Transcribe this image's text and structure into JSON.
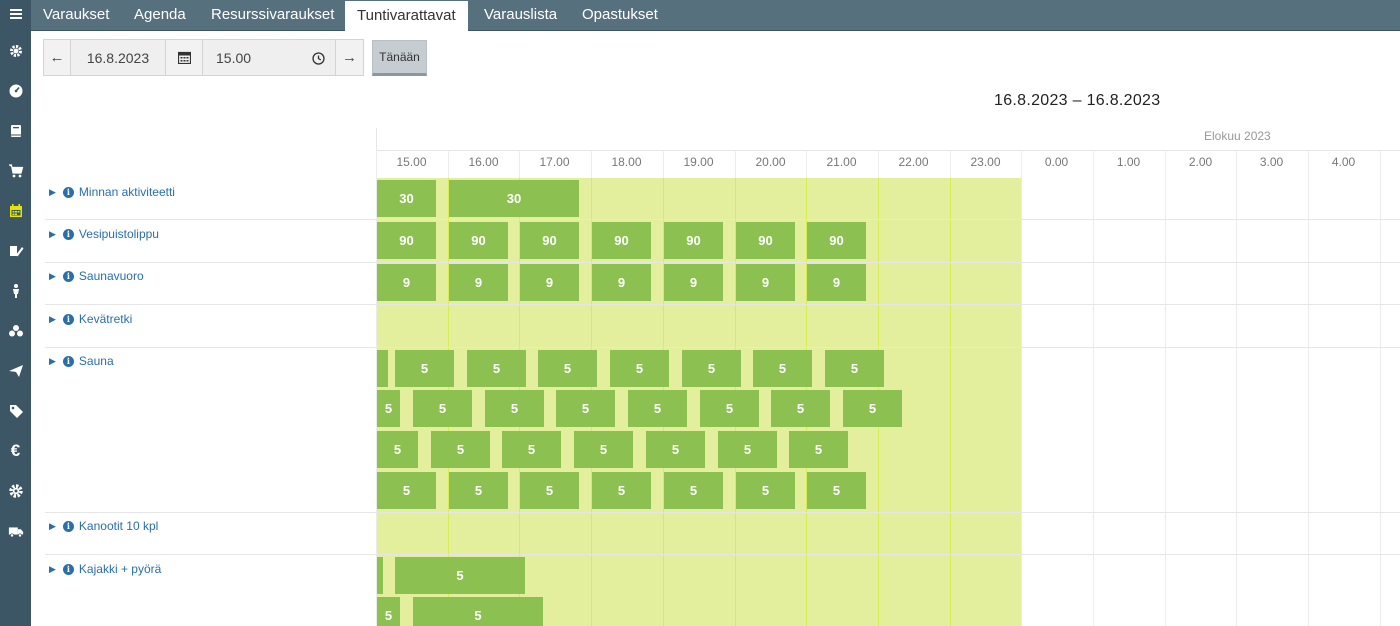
{
  "rail": {
    "icons": [
      "menu-icon",
      "settings-cog-icon",
      "dashboard-gauge-icon",
      "book-icon",
      "cart-icon",
      "calendar-icon",
      "ticket-edit-icon",
      "person-icon",
      "group-icon",
      "send-icon",
      "tag-icon",
      "euro-icon",
      "gear-icon",
      "truck-icon"
    ],
    "active_index": 5
  },
  "nav": {
    "tabs": [
      {
        "label": "Varaukset"
      },
      {
        "label": "Agenda"
      },
      {
        "label": "Resurssivaraukset"
      },
      {
        "label": "Tuntivarattavat"
      },
      {
        "label": "Varauslista"
      },
      {
        "label": "Opastukset"
      }
    ],
    "active": "Tuntivarattavat"
  },
  "controls": {
    "date": "16.8.2023",
    "time": "15.00",
    "today_label": "Tänään"
  },
  "header": {
    "date_range": "16.8.2023 – 16.8.2023",
    "month_label": "Elokuu 2023"
  },
  "timeline": {
    "hours": [
      "15.00",
      "16.00",
      "17.00",
      "18.00",
      "19.00",
      "20.00",
      "21.00",
      "22.00",
      "23.00",
      "0.00",
      "1.00",
      "2.00",
      "3.00",
      "4.00"
    ],
    "bookable_until": "23.00"
  },
  "resources": [
    {
      "name": "Minnan aktiviteetti"
    },
    {
      "name": "Vesipuistolippu"
    },
    {
      "name": "Saunavuoro"
    },
    {
      "name": "Kevätretki"
    },
    {
      "name": "Sauna"
    },
    {
      "name": "Kanootit 10 kpl"
    },
    {
      "name": "Kajakki + pyörä"
    }
  ],
  "availability": [
    {
      "resource": "Minnan aktiviteetti",
      "slots": [
        {
          "start": "15.00",
          "end": "15.50",
          "value": "30"
        },
        {
          "start": "16.00",
          "end": "17.50",
          "value": "30"
        }
      ]
    },
    {
      "resource": "Vesipuistolippu",
      "slots": [
        {
          "start": "15.00",
          "end": "15.50",
          "value": "90"
        },
        {
          "start": "16.00",
          "end": "16.50",
          "value": "90"
        },
        {
          "start": "17.00",
          "end": "17.50",
          "value": "90"
        },
        {
          "start": "18.00",
          "end": "18.50",
          "value": "90"
        },
        {
          "start": "19.00",
          "end": "19.50",
          "value": "90"
        },
        {
          "start": "20.00",
          "end": "20.50",
          "value": "90"
        },
        {
          "start": "21.00",
          "end": "21.50",
          "value": "90"
        }
      ]
    },
    {
      "resource": "Saunavuoro",
      "slots": [
        {
          "start": "15.00",
          "end": "15.50",
          "value": "9"
        },
        {
          "start": "16.00",
          "end": "16.50",
          "value": "9"
        },
        {
          "start": "17.00",
          "end": "17.50",
          "value": "9"
        },
        {
          "start": "18.00",
          "end": "18.50",
          "value": "9"
        },
        {
          "start": "19.00",
          "end": "19.50",
          "value": "9"
        },
        {
          "start": "20.00",
          "end": "20.50",
          "value": "9"
        },
        {
          "start": "21.00",
          "end": "21.50",
          "value": "9"
        }
      ]
    },
    {
      "resource": "Sauna",
      "lane": 1,
      "slots": [
        {
          "start": "15.00",
          "end": "15.10",
          "value": ""
        },
        {
          "start": "15.15",
          "end": "16.05",
          "value": "5"
        },
        {
          "start": "16.15",
          "end": "17.05",
          "value": "5"
        },
        {
          "start": "17.15",
          "end": "18.05",
          "value": "5"
        },
        {
          "start": "18.15",
          "end": "19.05",
          "value": "5"
        },
        {
          "start": "19.15",
          "end": "20.05",
          "value": "5"
        },
        {
          "start": "20.15",
          "end": "21.05",
          "value": "5"
        },
        {
          "start": "21.15",
          "end": "22.05",
          "value": "5"
        }
      ]
    },
    {
      "resource": "Sauna",
      "lane": 2,
      "slots": [
        {
          "start": "15.00",
          "end": "15.20",
          "value": "5"
        },
        {
          "start": "15.30",
          "end": "16.20",
          "value": "5"
        },
        {
          "start": "16.30",
          "end": "17.20",
          "value": "5"
        },
        {
          "start": "17.30",
          "end": "18.20",
          "value": "5"
        },
        {
          "start": "18.30",
          "end": "19.20",
          "value": "5"
        },
        {
          "start": "19.30",
          "end": "20.20",
          "value": "5"
        },
        {
          "start": "20.30",
          "end": "21.20",
          "value": "5"
        },
        {
          "start": "21.30",
          "end": "22.20",
          "value": "5"
        }
      ]
    },
    {
      "resource": "Sauna",
      "lane": 3,
      "slots": [
        {
          "start": "15.00",
          "end": "15.35",
          "value": "5"
        },
        {
          "start": "15.45",
          "end": "16.35",
          "value": "5"
        },
        {
          "start": "16.45",
          "end": "17.35",
          "value": "5"
        },
        {
          "start": "17.45",
          "end": "18.35",
          "value": "5"
        },
        {
          "start": "18.45",
          "end": "19.35",
          "value": "5"
        },
        {
          "start": "19.45",
          "end": "20.35",
          "value": "5"
        },
        {
          "start": "20.45",
          "end": "21.35",
          "value": "5"
        }
      ]
    },
    {
      "resource": "Sauna",
      "lane": 4,
      "slots": [
        {
          "start": "15.00",
          "end": "15.50",
          "value": "5"
        },
        {
          "start": "16.00",
          "end": "16.50",
          "value": "5"
        },
        {
          "start": "17.00",
          "end": "17.50",
          "value": "5"
        },
        {
          "start": "18.00",
          "end": "18.50",
          "value": "5"
        },
        {
          "start": "19.00",
          "end": "19.50",
          "value": "5"
        },
        {
          "start": "20.00",
          "end": "20.50",
          "value": "5"
        },
        {
          "start": "21.00",
          "end": "21.50",
          "value": "5"
        }
      ]
    },
    {
      "resource": "Kajakki + pyörä",
      "lane": 1,
      "slots": [
        {
          "start": "15.00",
          "end": "15.05",
          "value": ""
        },
        {
          "start": "15.15",
          "end": "17.05",
          "value": "5"
        }
      ]
    },
    {
      "resource": "Kajakki + pyörä",
      "lane": 2,
      "slots": [
        {
          "start": "15.00",
          "end": "15.20",
          "value": "5"
        },
        {
          "start": "15.30",
          "end": "17.20",
          "value": "5"
        }
      ]
    }
  ],
  "colors": {
    "rail_bg": "#3d5666",
    "nav_bg": "#57707d",
    "bookable_area": "#e4ef9e",
    "slot": "#8cc152",
    "link": "#2a6fa8",
    "active_icon": "#e6e600"
  }
}
